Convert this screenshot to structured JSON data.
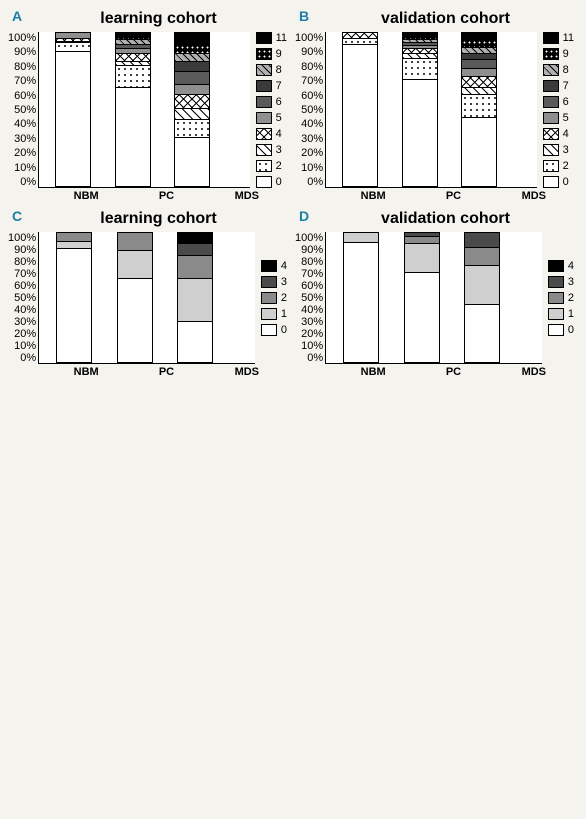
{
  "yticks": [
    "0%",
    "10%",
    "20%",
    "30%",
    "40%",
    "50%",
    "60%",
    "70%",
    "80%",
    "90%",
    "100%"
  ],
  "categories": [
    "NBM",
    "PC",
    "MDS"
  ],
  "legend_top": [
    {
      "k": "11",
      "cls": "p11"
    },
    {
      "k": "9",
      "cls": "p9"
    },
    {
      "k": "8",
      "cls": "p8"
    },
    {
      "k": "7",
      "cls": "p7"
    },
    {
      "k": "6",
      "cls": "p6"
    },
    {
      "k": "5",
      "cls": "p5"
    },
    {
      "k": "4",
      "cls": "p4"
    },
    {
      "k": "3",
      "cls": "p3"
    },
    {
      "k": "2",
      "cls": "p2"
    },
    {
      "k": "0",
      "cls": "p0"
    }
  ],
  "legend_bottom": [
    {
      "k": "4",
      "cls": "q4"
    },
    {
      "k": "3",
      "cls": "q3"
    },
    {
      "k": "2",
      "cls": "q2"
    },
    {
      "k": "1",
      "cls": "q1"
    },
    {
      "k": "0",
      "cls": "q0"
    }
  ],
  "panels": {
    "A": {
      "label": "A",
      "title": "learning cohort",
      "legend": "top",
      "bars": [
        [
          {
            "cls": "p0",
            "v": 88
          },
          {
            "cls": "p2",
            "v": 6
          },
          {
            "cls": "p3",
            "v": 1
          },
          {
            "cls": "p4",
            "v": 2
          },
          {
            "cls": "p5",
            "v": 3
          }
        ],
        [
          {
            "cls": "p0",
            "v": 65
          },
          {
            "cls": "p2",
            "v": 14
          },
          {
            "cls": "p3",
            "v": 3
          },
          {
            "cls": "p4",
            "v": 5
          },
          {
            "cls": "p5",
            "v": 3
          },
          {
            "cls": "p6",
            "v": 3
          },
          {
            "cls": "p8",
            "v": 3
          },
          {
            "cls": "p9",
            "v": 2
          },
          {
            "cls": "p11",
            "v": 2
          }
        ],
        [
          {
            "cls": "p0",
            "v": 32
          },
          {
            "cls": "p2",
            "v": 12
          },
          {
            "cls": "p3",
            "v": 7
          },
          {
            "cls": "p4",
            "v": 9
          },
          {
            "cls": "p5",
            "v": 7
          },
          {
            "cls": "p6",
            "v": 8
          },
          {
            "cls": "p7",
            "v": 7
          },
          {
            "cls": "p8",
            "v": 5
          },
          {
            "cls": "p9",
            "v": 6
          },
          {
            "cls": "p11",
            "v": 7
          }
        ]
      ]
    },
    "B": {
      "label": "B",
      "title": "validation cohort",
      "legend": "top",
      "bars": [
        [
          {
            "cls": "p0",
            "v": 93
          },
          {
            "cls": "p2",
            "v": 4
          },
          {
            "cls": "p4",
            "v": 3
          }
        ],
        [
          {
            "cls": "p0",
            "v": 70
          },
          {
            "cls": "p2",
            "v": 14
          },
          {
            "cls": "p3",
            "v": 3
          },
          {
            "cls": "p4",
            "v": 3
          },
          {
            "cls": "p5",
            "v": 2
          },
          {
            "cls": "p6",
            "v": 2
          },
          {
            "cls": "p8",
            "v": 2
          },
          {
            "cls": "p9",
            "v": 2
          },
          {
            "cls": "p11",
            "v": 2
          }
        ],
        [
          {
            "cls": "p0",
            "v": 45
          },
          {
            "cls": "p2",
            "v": 15
          },
          {
            "cls": "p3",
            "v": 5
          },
          {
            "cls": "p4",
            "v": 7
          },
          {
            "cls": "p5",
            "v": 5
          },
          {
            "cls": "p6",
            "v": 6
          },
          {
            "cls": "p7",
            "v": 4
          },
          {
            "cls": "p8",
            "v": 4
          },
          {
            "cls": "p9",
            "v": 5
          },
          {
            "cls": "p11",
            "v": 4
          }
        ]
      ]
    },
    "C": {
      "label": "C",
      "title": "learning cohort",
      "legend": "bottom",
      "bars": [
        [
          {
            "cls": "q0",
            "v": 88
          },
          {
            "cls": "q1",
            "v": 6
          },
          {
            "cls": "q2",
            "v": 6
          }
        ],
        [
          {
            "cls": "q0",
            "v": 65
          },
          {
            "cls": "q1",
            "v": 22
          },
          {
            "cls": "q2",
            "v": 13
          }
        ],
        [
          {
            "cls": "q0",
            "v": 32
          },
          {
            "cls": "q1",
            "v": 33
          },
          {
            "cls": "q2",
            "v": 18
          },
          {
            "cls": "q3",
            "v": 9
          },
          {
            "cls": "q4",
            "v": 8
          }
        ]
      ]
    },
    "D": {
      "label": "D",
      "title": "validation cohort",
      "legend": "bottom",
      "bars": [
        [
          {
            "cls": "q0",
            "v": 93
          },
          {
            "cls": "q1",
            "v": 7
          }
        ],
        [
          {
            "cls": "q0",
            "v": 70
          },
          {
            "cls": "q1",
            "v": 22
          },
          {
            "cls": "q2",
            "v": 6
          },
          {
            "cls": "q3",
            "v": 2
          }
        ],
        [
          {
            "cls": "q0",
            "v": 45
          },
          {
            "cls": "q1",
            "v": 30
          },
          {
            "cls": "q2",
            "v": 14
          },
          {
            "cls": "q3",
            "v": 11
          }
        ]
      ]
    }
  }
}
